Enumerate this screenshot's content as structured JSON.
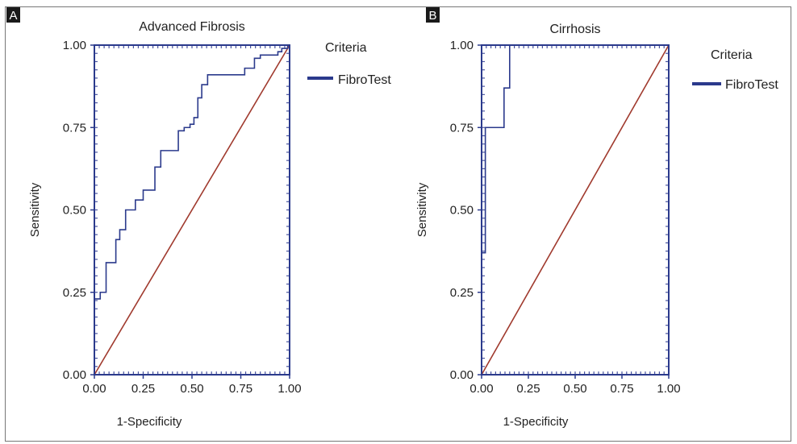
{
  "chart_data": [
    {
      "type": "line",
      "panel_label": "A",
      "title": "Advanced Fibrosis",
      "xlabel": "1-Specificity",
      "ylabel": "Sensitivity",
      "xlim": [
        0,
        1
      ],
      "ylim": [
        0,
        1
      ],
      "x_ticks": [
        "0.00",
        "0.25",
        "0.50",
        "0.75",
        "1.00"
      ],
      "y_ticks": [
        "0.00",
        "0.25",
        "0.50",
        "0.75",
        "1.00"
      ],
      "legend_title": "Criteria",
      "legend_position": "right",
      "series": [
        {
          "name": "FibroTest",
          "color": "#2b3a8c",
          "x": [
            0.0,
            0.0,
            0.03,
            0.03,
            0.06,
            0.06,
            0.11,
            0.11,
            0.13,
            0.13,
            0.16,
            0.16,
            0.21,
            0.21,
            0.25,
            0.25,
            0.31,
            0.31,
            0.34,
            0.34,
            0.43,
            0.43,
            0.46,
            0.46,
            0.49,
            0.49,
            0.51,
            0.51,
            0.53,
            0.53,
            0.55,
            0.55,
            0.58,
            0.58,
            0.66,
            0.66,
            0.77,
            0.77,
            0.79,
            0.79,
            0.82,
            0.82,
            0.85,
            0.85,
            0.94,
            0.94,
            0.96,
            0.96,
            0.99,
            0.99,
            1.0
          ],
          "y": [
            0.0,
            0.23,
            0.23,
            0.25,
            0.25,
            0.34,
            0.34,
            0.41,
            0.41,
            0.44,
            0.44,
            0.5,
            0.5,
            0.53,
            0.53,
            0.56,
            0.56,
            0.63,
            0.63,
            0.68,
            0.68,
            0.74,
            0.74,
            0.75,
            0.75,
            0.76,
            0.76,
            0.78,
            0.78,
            0.84,
            0.84,
            0.88,
            0.88,
            0.91,
            0.91,
            0.91,
            0.91,
            0.93,
            0.93,
            0.93,
            0.93,
            0.96,
            0.96,
            0.97,
            0.97,
            0.98,
            0.98,
            0.99,
            0.99,
            1.0,
            1.0
          ]
        }
      ],
      "reference_line": {
        "x": [
          0,
          1
        ],
        "y": [
          0,
          1
        ],
        "color": "#a03a2e"
      }
    },
    {
      "type": "line",
      "panel_label": "B",
      "title": "Cirrhosis",
      "xlabel": "1-Specificity",
      "ylabel": "Sensitivity",
      "xlim": [
        0,
        1
      ],
      "ylim": [
        0,
        1
      ],
      "x_ticks": [
        "0.00",
        "0.25",
        "0.50",
        "0.75",
        "1.00"
      ],
      "y_ticks": [
        "0.00",
        "0.25",
        "0.50",
        "0.75",
        "1.00"
      ],
      "legend_title": "Criteria",
      "legend_position": "right",
      "series": [
        {
          "name": "FibroTest",
          "color": "#2b3a8c",
          "x": [
            0.0,
            0.0,
            0.02,
            0.02,
            0.03,
            0.03,
            0.12,
            0.12,
            0.15,
            0.15,
            1.0
          ],
          "y": [
            0.0,
            0.37,
            0.37,
            0.75,
            0.75,
            0.75,
            0.75,
            0.87,
            0.87,
            1.0,
            1.0
          ]
        }
      ],
      "reference_line": {
        "x": [
          0,
          1
        ],
        "y": [
          0,
          1
        ],
        "color": "#a03a2e"
      }
    }
  ]
}
